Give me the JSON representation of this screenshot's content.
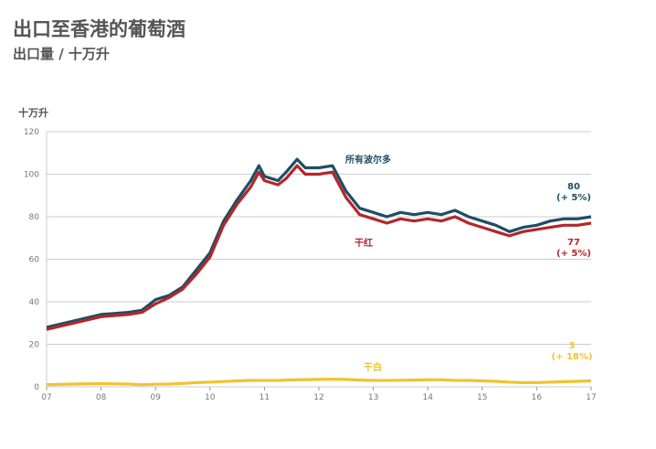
{
  "chart_data": {
    "type": "line",
    "title": "出口至香港的葡萄酒",
    "subtitle": "出口量 / 十万升",
    "ylabel": "十万升",
    "ylim": [
      0,
      120
    ],
    "yticks": [
      "0",
      "20",
      "40",
      "60",
      "80",
      "100",
      "120"
    ],
    "xlim": [
      2007,
      2017
    ],
    "xticks": [
      "07",
      "08",
      "09",
      "10",
      "11",
      "12",
      "13",
      "14",
      "15",
      "16",
      "17"
    ],
    "grid": true,
    "x": [
      2007,
      2007.5,
      2008,
      2008.5,
      2008.75,
      2009,
      2009.25,
      2009.5,
      2009.75,
      2010,
      2010.25,
      2010.5,
      2010.75,
      2010.9,
      2011,
      2011.25,
      2011.4,
      2011.6,
      2011.75,
      2012,
      2012.25,
      2012.5,
      2012.75,
      2013,
      2013.25,
      2013.5,
      2013.75,
      2014,
      2014.25,
      2014.5,
      2014.75,
      2015,
      2015.25,
      2015.5,
      2015.75,
      2016,
      2016.25,
      2016.5,
      2016.75,
      2017
    ],
    "series": [
      {
        "name": "所有波尔多",
        "color": "#1d4e63",
        "end_label": "80",
        "end_change": "(+ 5%)",
        "values": [
          28,
          31,
          34,
          35,
          36,
          41,
          43,
          47,
          55,
          63,
          78,
          88,
          97,
          104,
          99,
          97,
          101,
          107,
          103,
          103,
          104,
          92,
          84,
          82,
          80,
          82,
          81,
          82,
          81,
          83,
          80,
          78,
          76,
          73,
          75,
          76,
          78,
          79,
          79,
          80
        ]
      },
      {
        "name": "干红",
        "color": "#b5262b",
        "end_label": "77",
        "end_change": "(+ 5%)",
        "values": [
          27,
          30,
          33,
          34,
          35,
          39,
          42,
          46,
          53,
          61,
          76,
          86,
          94,
          101,
          97,
          95,
          98,
          104,
          100,
          100,
          101,
          89,
          81,
          79,
          77,
          79,
          78,
          79,
          78,
          80,
          77,
          75,
          73,
          71,
          73,
          74,
          75,
          76,
          76,
          77
        ]
      },
      {
        "name": "干白",
        "color": "#f0c330",
        "end_label": "3",
        "end_change": "(+ 18%)",
        "values": [
          1,
          1.3,
          1.5,
          1.3,
          1,
          1.2,
          1.3,
          1.6,
          2,
          2.2,
          2.5,
          2.8,
          3,
          3,
          3,
          3,
          3.2,
          3.3,
          3.4,
          3.5,
          3.6,
          3.5,
          3.2,
          3,
          3,
          3.1,
          3.2,
          3.3,
          3.3,
          3,
          3,
          2.8,
          2.6,
          2.2,
          2,
          2,
          2.2,
          2.4,
          2.6,
          2.8
        ]
      }
    ]
  }
}
